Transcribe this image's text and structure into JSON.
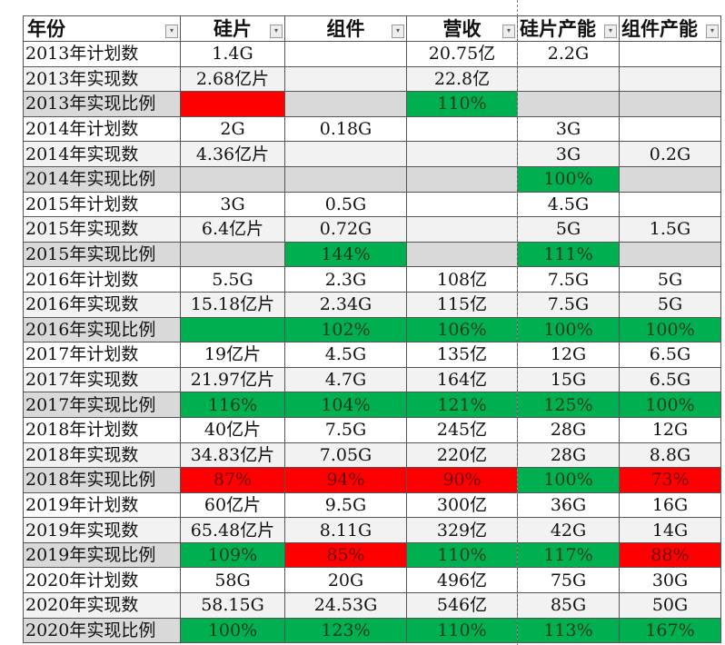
{
  "colors": {
    "green": "#00b050",
    "red": "#ff0000",
    "gray": "#d9d9d9"
  },
  "header": {
    "columns": [
      "年份",
      "硅片",
      "组件",
      "营收",
      "硅片产能",
      "组件产能"
    ],
    "filter_icon": "dropdown-arrow-icon"
  },
  "rows": [
    {
      "type": "plan",
      "label": "2013年计划数",
      "cells": [
        {
          "v": "1.4G"
        },
        {
          "v": ""
        },
        {
          "v": "20.75亿"
        },
        {
          "v": "2.2G"
        },
        {
          "v": ""
        }
      ]
    },
    {
      "type": "actual",
      "label": "2013年实现数",
      "cells": [
        {
          "v": "2.68亿片"
        },
        {
          "v": ""
        },
        {
          "v": "22.8亿"
        },
        {
          "v": ""
        },
        {
          "v": ""
        }
      ]
    },
    {
      "type": "ratio",
      "label": "2013年实现比例",
      "cells": [
        {
          "v": "",
          "fill": "red"
        },
        {
          "v": ""
        },
        {
          "v": "110%",
          "fill": "green"
        },
        {
          "v": ""
        },
        {
          "v": ""
        }
      ]
    },
    {
      "type": "plan",
      "label": "2014年计划数",
      "cells": [
        {
          "v": "2G"
        },
        {
          "v": "0.18G"
        },
        {
          "v": ""
        },
        {
          "v": "3G"
        },
        {
          "v": ""
        }
      ]
    },
    {
      "type": "actual",
      "label": "2014年实现数",
      "cells": [
        {
          "v": "4.36亿片"
        },
        {
          "v": ""
        },
        {
          "v": ""
        },
        {
          "v": "3G"
        },
        {
          "v": "0.2G"
        }
      ]
    },
    {
      "type": "ratio",
      "label": "2014年实现比例",
      "cells": [
        {
          "v": ""
        },
        {
          "v": ""
        },
        {
          "v": ""
        },
        {
          "v": "100%",
          "fill": "green"
        },
        {
          "v": ""
        }
      ]
    },
    {
      "type": "plan",
      "label": "2015年计划数",
      "cells": [
        {
          "v": "3G"
        },
        {
          "v": "0.5G"
        },
        {
          "v": ""
        },
        {
          "v": "4.5G"
        },
        {
          "v": ""
        }
      ]
    },
    {
      "type": "actual",
      "label": "2015年实现数",
      "cells": [
        {
          "v": "6.4亿片"
        },
        {
          "v": "0.72G"
        },
        {
          "v": ""
        },
        {
          "v": "5G"
        },
        {
          "v": "1.5G"
        }
      ]
    },
    {
      "type": "ratio",
      "label": "2015年实现比例",
      "cells": [
        {
          "v": ""
        },
        {
          "v": "144%",
          "fill": "green"
        },
        {
          "v": ""
        },
        {
          "v": "111%",
          "fill": "green"
        },
        {
          "v": ""
        }
      ]
    },
    {
      "type": "plan",
      "label": "2016年计划数",
      "cells": [
        {
          "v": "5.5G"
        },
        {
          "v": "2.3G"
        },
        {
          "v": "108亿"
        },
        {
          "v": "7.5G"
        },
        {
          "v": "5G"
        }
      ]
    },
    {
      "type": "actual",
      "label": "2016年实现数",
      "cells": [
        {
          "v": "15.18亿片"
        },
        {
          "v": "2.34G"
        },
        {
          "v": "115亿"
        },
        {
          "v": "7.5G"
        },
        {
          "v": "5G"
        }
      ]
    },
    {
      "type": "ratio",
      "label": "2016年实现比例",
      "cells": [
        {
          "v": "",
          "fill": "green"
        },
        {
          "v": "102%",
          "fill": "green"
        },
        {
          "v": "106%",
          "fill": "green"
        },
        {
          "v": "100%",
          "fill": "green"
        },
        {
          "v": "100%",
          "fill": "green"
        }
      ]
    },
    {
      "type": "plan",
      "label": "2017年计划数",
      "cells": [
        {
          "v": "19亿片"
        },
        {
          "v": "4.5G"
        },
        {
          "v": "135亿"
        },
        {
          "v": "12G"
        },
        {
          "v": "6.5G"
        }
      ]
    },
    {
      "type": "actual",
      "label": "2017年实现数",
      "cells": [
        {
          "v": "21.97亿片"
        },
        {
          "v": "4.7G"
        },
        {
          "v": "164亿"
        },
        {
          "v": "15G"
        },
        {
          "v": "6.5G"
        }
      ]
    },
    {
      "type": "ratio",
      "label": "2017年实现比例",
      "cells": [
        {
          "v": "116%",
          "fill": "green"
        },
        {
          "v": "104%",
          "fill": "green"
        },
        {
          "v": "121%",
          "fill": "green"
        },
        {
          "v": "125%",
          "fill": "green"
        },
        {
          "v": "100%",
          "fill": "green"
        }
      ]
    },
    {
      "type": "plan",
      "label": "2018年计划数",
      "cells": [
        {
          "v": "40亿片"
        },
        {
          "v": "7.5G"
        },
        {
          "v": "245亿"
        },
        {
          "v": "28G"
        },
        {
          "v": "12G"
        }
      ]
    },
    {
      "type": "actual",
      "label": "2018年实现数",
      "cells": [
        {
          "v": "34.83亿片"
        },
        {
          "v": "7.05G"
        },
        {
          "v": "220亿"
        },
        {
          "v": "28G"
        },
        {
          "v": "8.8G"
        }
      ]
    },
    {
      "type": "ratio",
      "label": "2018年实现比例",
      "cells": [
        {
          "v": "87%",
          "fill": "red"
        },
        {
          "v": "94%",
          "fill": "red"
        },
        {
          "v": "90%",
          "fill": "red"
        },
        {
          "v": "100%",
          "fill": "green"
        },
        {
          "v": "73%",
          "fill": "red"
        }
      ]
    },
    {
      "type": "plan",
      "label": "2019年计划数",
      "cells": [
        {
          "v": "60亿片"
        },
        {
          "v": "9.5G"
        },
        {
          "v": "300亿"
        },
        {
          "v": "36G"
        },
        {
          "v": "16G"
        }
      ]
    },
    {
      "type": "actual",
      "label": "2019年实现数",
      "cells": [
        {
          "v": "65.48亿片"
        },
        {
          "v": "8.11G"
        },
        {
          "v": "329亿"
        },
        {
          "v": "42G"
        },
        {
          "v": "14G"
        }
      ]
    },
    {
      "type": "ratio",
      "label": "2019年实现比例",
      "cells": [
        {
          "v": "109%",
          "fill": "green"
        },
        {
          "v": "85%",
          "fill": "red"
        },
        {
          "v": "110%",
          "fill": "green"
        },
        {
          "v": "117%",
          "fill": "green"
        },
        {
          "v": "88%",
          "fill": "red"
        }
      ]
    },
    {
      "type": "plan",
      "label": "2020年计划数",
      "cells": [
        {
          "v": "58G"
        },
        {
          "v": "20G"
        },
        {
          "v": "496亿"
        },
        {
          "v": "75G"
        },
        {
          "v": "30G"
        }
      ]
    },
    {
      "type": "actual",
      "label": "2020年实现数",
      "cells": [
        {
          "v": "58.15G"
        },
        {
          "v": "24.53G"
        },
        {
          "v": "546亿"
        },
        {
          "v": "85G"
        },
        {
          "v": "50G"
        }
      ]
    },
    {
      "type": "ratio",
      "label": "2020年实现比例",
      "cells": [
        {
          "v": "100%",
          "fill": "green"
        },
        {
          "v": "123%",
          "fill": "green"
        },
        {
          "v": "110%",
          "fill": "green"
        },
        {
          "v": "113%",
          "fill": "green"
        },
        {
          "v": "167%",
          "fill": "green"
        }
      ]
    }
  ]
}
